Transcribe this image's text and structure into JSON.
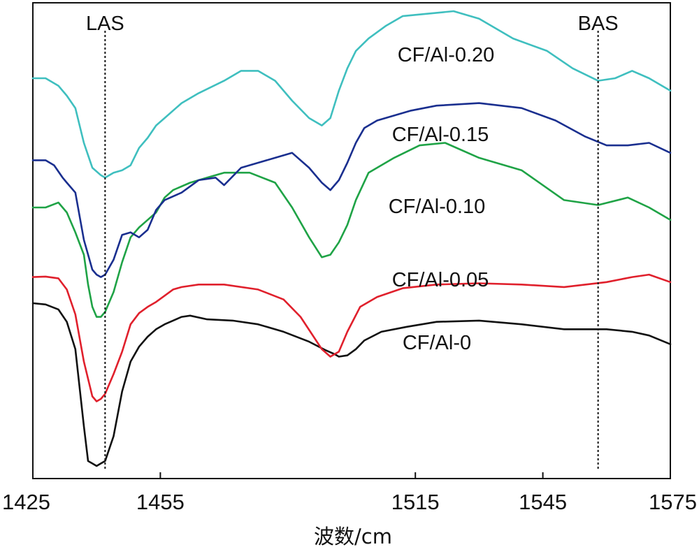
{
  "chart_data": {
    "type": "line",
    "title": "",
    "xlabel": "波数/cm",
    "ylabel": "",
    "xlim": [
      1425,
      1575
    ],
    "xticks": [
      1425,
      1455,
      1515,
      1545,
      1575
    ],
    "yticks_shown": false,
    "grid": false,
    "legend": "none (inline labels)",
    "markers": [
      {
        "label": "LAS",
        "x": 1442
      },
      {
        "label": "BAS",
        "x": 1558
      }
    ],
    "series": [
      {
        "name": "CF/Al-0",
        "color": "#111111",
        "x": [
          1425,
          1428,
          1431,
          1433,
          1435,
          1437,
          1438,
          1439,
          1440,
          1441,
          1442,
          1444,
          1446,
          1448,
          1450,
          1452,
          1454,
          1456,
          1458,
          1460,
          1462,
          1466,
          1472,
          1478,
          1484,
          1490,
          1494,
          1496,
          1497,
          1499,
          1501,
          1503,
          1507,
          1513,
          1520,
          1530,
          1540,
          1550,
          1560,
          1566,
          1570,
          1575
        ],
        "y": [
          0.315,
          0.31,
          0.29,
          0.24,
          0.13,
          -0.18,
          -0.32,
          -0.33,
          -0.34,
          -0.33,
          -0.32,
          -0.22,
          -0.04,
          0.08,
          0.14,
          0.18,
          0.21,
          0.23,
          0.245,
          0.26,
          0.265,
          0.25,
          0.245,
          0.23,
          0.2,
          0.16,
          0.125,
          0.11,
          0.1,
          0.105,
          0.13,
          0.165,
          0.2,
          0.22,
          0.24,
          0.245,
          0.23,
          0.21,
          0.21,
          0.2,
          0.185,
          0.15
        ]
      },
      {
        "name": "CF/Al-0.05",
        "color": "#e0202c",
        "x": [
          1425,
          1428,
          1431,
          1433,
          1435,
          1437,
          1439,
          1440,
          1441,
          1442,
          1444,
          1446,
          1448,
          1450,
          1452,
          1454,
          1456,
          1458,
          1460,
          1464,
          1470,
          1478,
          1484,
          1488,
          1493,
          1495,
          1497,
          1499,
          1502,
          1506,
          1512,
          1520,
          1530,
          1540,
          1550,
          1560,
          1566,
          1570,
          1575
        ],
        "y": [
          0.42,
          0.422,
          0.415,
          0.37,
          0.27,
          0.08,
          -0.06,
          -0.08,
          -0.07,
          -0.05,
          0.03,
          0.12,
          0.23,
          0.275,
          0.3,
          0.32,
          0.345,
          0.37,
          0.38,
          0.39,
          0.39,
          0.37,
          0.33,
          0.26,
          0.13,
          0.1,
          0.12,
          0.2,
          0.3,
          0.34,
          0.375,
          0.39,
          0.395,
          0.39,
          0.38,
          0.4,
          0.42,
          0.43,
          0.4
        ]
      },
      {
        "name": "CF/Al-0.10",
        "color": "#1fa346",
        "x": [
          1425,
          1428,
          1431,
          1433,
          1435,
          1437,
          1438,
          1439,
          1440,
          1441,
          1442,
          1444,
          1446,
          1448,
          1450,
          1452,
          1454,
          1456,
          1458,
          1462,
          1466,
          1470,
          1476,
          1482,
          1486,
          1490,
          1493,
          1495,
          1497,
          1499,
          1501,
          1504,
          1510,
          1516,
          1522,
          1530,
          1540,
          1550,
          1558,
          1565,
          1570,
          1575
        ],
        "y": [
          0.7,
          0.7,
          0.72,
          0.68,
          0.6,
          0.51,
          0.39,
          0.3,
          0.26,
          0.26,
          0.28,
          0.36,
          0.48,
          0.58,
          0.62,
          0.65,
          0.68,
          0.74,
          0.77,
          0.8,
          0.82,
          0.84,
          0.84,
          0.8,
          0.7,
          0.58,
          0.5,
          0.51,
          0.56,
          0.63,
          0.73,
          0.84,
          0.9,
          0.95,
          0.96,
          0.9,
          0.85,
          0.73,
          0.71,
          0.74,
          0.7,
          0.65
        ]
      },
      {
        "name": "CF/Al-0.15",
        "color": "#1a2f8f",
        "x": [
          1425,
          1428,
          1430,
          1432,
          1433,
          1435,
          1437,
          1439,
          1440,
          1441,
          1442,
          1444,
          1446,
          1448,
          1450,
          1452,
          1454,
          1456,
          1460,
          1464,
          1468,
          1470,
          1474,
          1478,
          1482,
          1486,
          1490,
          1493,
          1495,
          1497,
          1499,
          1501,
          1503,
          1506,
          1510,
          1514,
          1520,
          1530,
          1540,
          1548,
          1555,
          1560,
          1565,
          1570,
          1575
        ],
        "y": [
          0.89,
          0.89,
          0.87,
          0.82,
          0.8,
          0.76,
          0.57,
          0.45,
          0.43,
          0.42,
          0.43,
          0.49,
          0.59,
          0.6,
          0.58,
          0.61,
          0.69,
          0.73,
          0.76,
          0.81,
          0.82,
          0.79,
          0.86,
          0.88,
          0.9,
          0.92,
          0.86,
          0.8,
          0.77,
          0.81,
          0.88,
          0.96,
          1.02,
          1.05,
          1.07,
          1.09,
          1.11,
          1.12,
          1.1,
          1.05,
          0.985,
          0.95,
          0.95,
          0.96,
          0.92
        ]
      },
      {
        "name": "CF/Al-0.20",
        "color": "#3fbfbf",
        "x": [
          1425,
          1428,
          1431,
          1433,
          1435,
          1437,
          1439,
          1441,
          1442,
          1444,
          1446,
          1448,
          1450,
          1452,
          1454,
          1456,
          1460,
          1464,
          1470,
          1474,
          1478,
          1482,
          1486,
          1490,
          1493,
          1495,
          1497,
          1499,
          1501,
          1504,
          1508,
          1512,
          1518,
          1524,
          1530,
          1538,
          1546,
          1552,
          1558,
          1562,
          1566,
          1570,
          1575
        ],
        "y": [
          1.22,
          1.22,
          1.19,
          1.15,
          1.1,
          0.96,
          0.86,
          0.83,
          0.82,
          0.84,
          0.85,
          0.87,
          0.94,
          0.98,
          1.03,
          1.06,
          1.12,
          1.16,
          1.21,
          1.25,
          1.25,
          1.21,
          1.13,
          1.06,
          1.03,
          1.06,
          1.17,
          1.26,
          1.33,
          1.38,
          1.43,
          1.47,
          1.48,
          1.49,
          1.46,
          1.38,
          1.33,
          1.26,
          1.21,
          1.22,
          1.25,
          1.22,
          1.17
        ]
      }
    ]
  }
}
